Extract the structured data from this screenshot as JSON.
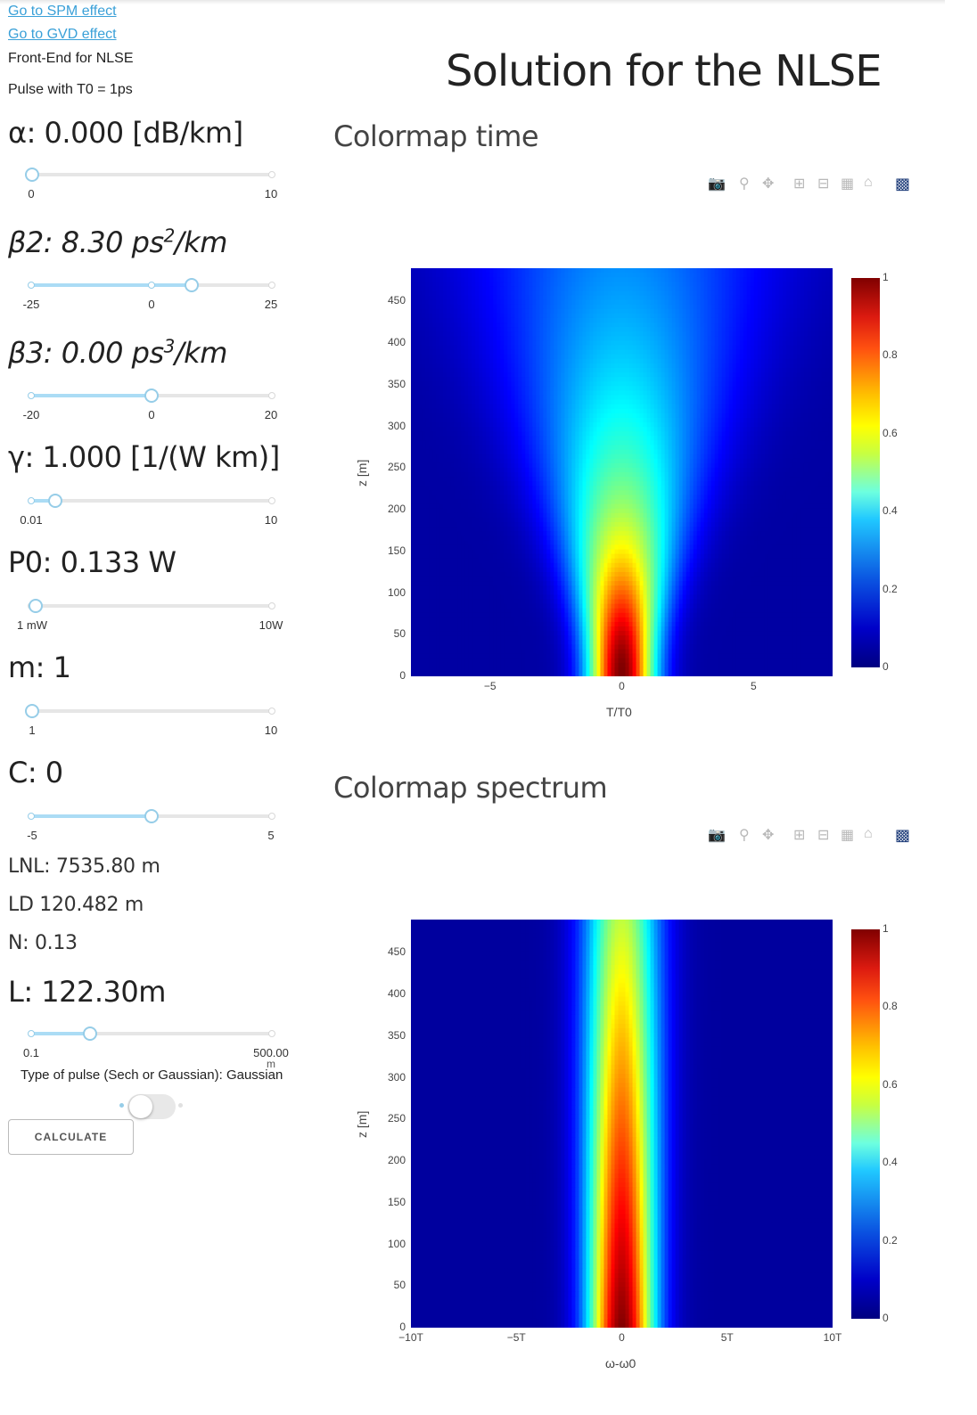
{
  "links": {
    "spm": "Go to SPM effect",
    "gvd": "Go to GVD effect"
  },
  "header": {
    "app_title": "Front-End for NLSE",
    "pulse_info": "Pulse with T0 = 1ps"
  },
  "params": {
    "alpha": {
      "label": "α: 0.000 [dB/km]",
      "min_label": "0",
      "max_label": "10",
      "value": 0
    },
    "beta2": {
      "prefix": "β2: 8.30 ps",
      "exp": "2",
      "suffix": "/km",
      "min_label": "-25",
      "mid_label": "0",
      "max_label": "25",
      "value": 8.3
    },
    "beta3": {
      "prefix": "β3: 0.00 ps",
      "exp": "3",
      "suffix": "/km",
      "min_label": "-20",
      "mid_label": "0",
      "max_label": "20",
      "value": 0
    },
    "gamma": {
      "label": "γ: 1.000 [1/(W km)]",
      "min_label": "0.01",
      "max_label": "10",
      "value": 1
    },
    "p0": {
      "label": "P0: 0.133 W",
      "min_label": "1 mW",
      "max_label": "10W",
      "value": 0.133
    },
    "m": {
      "label": "m: 1",
      "min_label": "1",
      "max_label": "10",
      "value": 1
    },
    "c": {
      "label": "C: 0",
      "min_label": "-5",
      "max_label": "5",
      "value": 0
    },
    "lnl": "LNL: 7535.80 m",
    "ld": "LD 120.482 m",
    "n": "N: 0.13",
    "l": {
      "label": "L: 122.30m",
      "min_label": "0.1",
      "max_label": "500.00",
      "unit_frag": "m",
      "value": 122.3
    }
  },
  "pulse_type": {
    "label": "Type of pulse (Sech or Gaussian): Gaussian"
  },
  "calculate": "CALCULATE",
  "main_title": "Solution for the NLSE",
  "colors": {
    "slider_track": "#abdcf5",
    "link": "#3aa0d8",
    "modebar_logo": "#1f3d7a"
  },
  "plots": [
    {
      "title": "Colormap time",
      "modebar_icons": [
        "camera-icon",
        "zoom-icon",
        "pan-icon",
        "zoom-in-icon",
        "zoom-out-icon",
        "autoscale-icon",
        "home-icon",
        "plotly-logo"
      ],
      "xlabel": "T/T0",
      "ylabel": "z [m]",
      "x_ticks": [
        "−5",
        "0",
        "5"
      ],
      "y_ticks": [
        "0",
        "50",
        "100",
        "150",
        "200",
        "250",
        "300",
        "350",
        "400",
        "450"
      ],
      "colorbar_ticks": [
        "0",
        "0.2",
        "0.4",
        "0.6",
        "0.8",
        "1"
      ]
    },
    {
      "title": "Colormap spectrum",
      "modebar_icons": [
        "camera-icon",
        "zoom-icon",
        "pan-icon",
        "zoom-in-icon",
        "zoom-out-icon",
        "autoscale-icon",
        "home-icon",
        "plotly-logo"
      ],
      "xlabel": "ω-ω0",
      "ylabel": "z [m]",
      "x_ticks": [
        "−10T",
        "−5T",
        "0",
        "5T",
        "10T"
      ],
      "y_ticks": [
        "0",
        "50",
        "100",
        "150",
        "200",
        "250",
        "300",
        "350",
        "400",
        "450"
      ],
      "colorbar_ticks": [
        "0",
        "0.2",
        "0.4",
        "0.6",
        "0.8",
        "1"
      ]
    }
  ],
  "chart_data": [
    {
      "type": "heatmap",
      "title": "Colormap time",
      "xlabel": "T/T0",
      "ylabel": "z [m]",
      "xlim": [
        -8,
        8
      ],
      "ylim": [
        0,
        490
      ],
      "x_ticks": [
        -5,
        0,
        5
      ],
      "y_ticks": [
        0,
        50,
        100,
        150,
        200,
        250,
        300,
        350,
        400,
        450
      ],
      "colorscale": "jet",
      "zlim": [
        0,
        1
      ],
      "peak": {
        "x": 0,
        "z": 0,
        "value": 1
      }
    },
    {
      "type": "heatmap",
      "title": "Colormap spectrum",
      "xlabel": "ω-ω0",
      "ylabel": "z [m]",
      "xlim": [
        -10,
        10
      ],
      "ylim": [
        0,
        490
      ],
      "x_ticks": [
        "−10T",
        "−5T",
        "0",
        "5T",
        "10T"
      ],
      "y_ticks": [
        0,
        50,
        100,
        150,
        200,
        250,
        300,
        350,
        400,
        450
      ],
      "colorscale": "jet",
      "zlim": [
        0,
        1
      ],
      "peak": {
        "x": 0,
        "z": 0,
        "value": 1
      }
    }
  ]
}
